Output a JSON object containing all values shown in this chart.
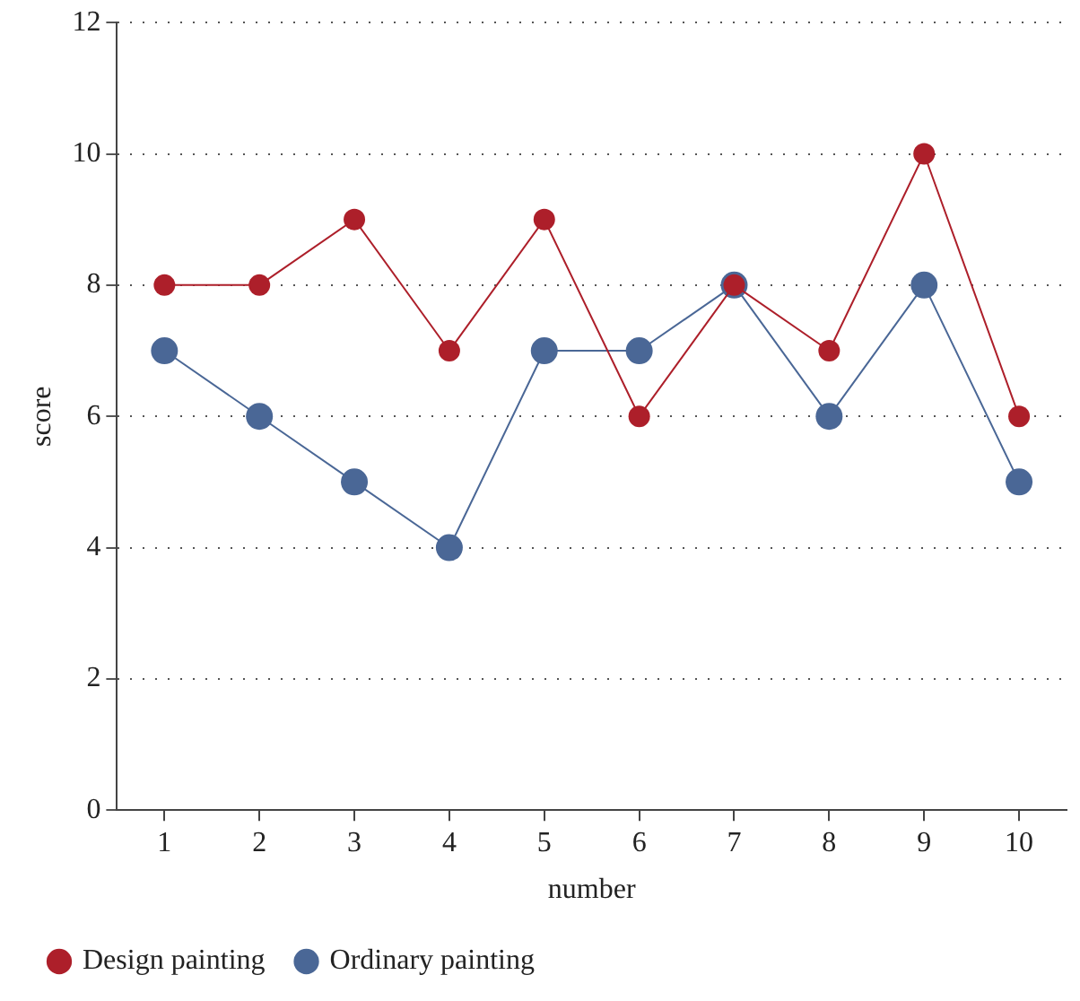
{
  "chart_data": {
    "type": "line",
    "xlabel": "number",
    "ylabel": "score",
    "categories": [
      "1",
      "2",
      "3",
      "4",
      "5",
      "6",
      "7",
      "8",
      "9",
      "10"
    ],
    "series": [
      {
        "name": "Ordinary painting",
        "color": "#4a6796",
        "values": [
          7,
          6,
          5,
          4,
          7,
          7,
          8,
          6,
          8,
          5
        ]
      },
      {
        "name": "Design painting",
        "color": "#ad1f2a",
        "values": [
          8,
          8,
          9,
          7,
          9,
          6,
          8,
          7,
          10,
          6
        ]
      }
    ],
    "ylim": [
      0,
      12
    ],
    "yticks": [
      0,
      2,
      4,
      6,
      8,
      10,
      12
    ],
    "grid": "y",
    "legend": "bottom left",
    "marker": "circle",
    "line_style": "solid"
  }
}
